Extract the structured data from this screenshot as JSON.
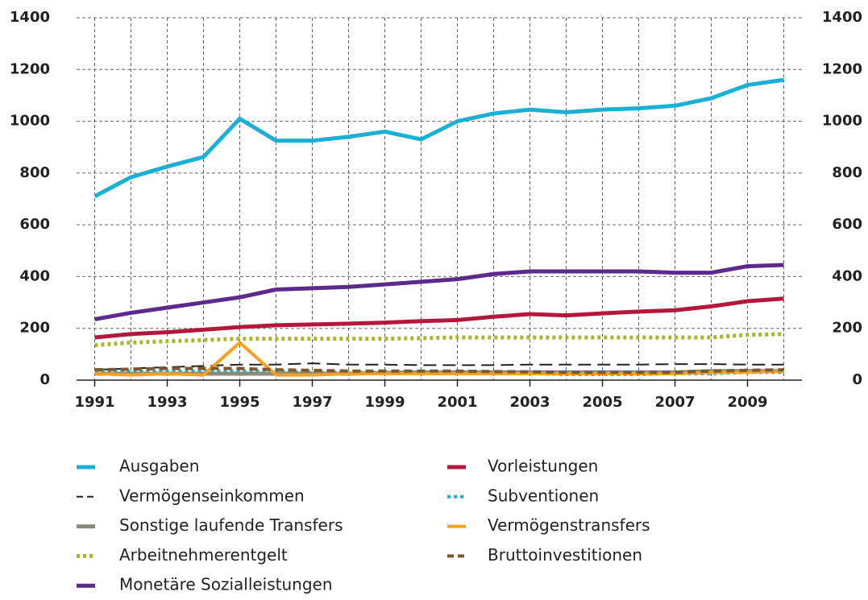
{
  "chart_data": {
    "type": "line",
    "x": [
      1991,
      1992,
      1993,
      1994,
      1995,
      1996,
      1997,
      1998,
      1999,
      2000,
      2001,
      2002,
      2003,
      2004,
      2005,
      2006,
      2007,
      2008,
      2009,
      2010
    ],
    "xlim": [
      1990.5,
      2010.5
    ],
    "xticks": [
      1991,
      1993,
      1995,
      1997,
      1999,
      2001,
      2003,
      2005,
      2007,
      2009
    ],
    "ylim": [
      0,
      1400
    ],
    "yticks": [
      0,
      200,
      400,
      600,
      800,
      1000,
      1200,
      1400
    ],
    "y2lim": [
      0,
      1400
    ],
    "y2ticks": [
      0,
      200,
      400,
      600,
      800,
      1000,
      1200,
      1400
    ],
    "grid": true,
    "series": [
      {
        "name": "Ausgaben",
        "color": "#1ab0d6",
        "dash": "solid",
        "width": 5,
        "values": [
          710,
          784,
          825,
          862,
          1010,
          925,
          925,
          940,
          960,
          930,
          1000,
          1030,
          1045,
          1035,
          1045,
          1050,
          1060,
          1089,
          1140,
          1160
        ]
      },
      {
        "name": "Vorleistungen",
        "color": "#b5173c",
        "dash": "solid",
        "width": 5,
        "values": [
          165,
          178,
          185,
          195,
          205,
          212,
          215,
          218,
          222,
          228,
          232,
          245,
          255,
          250,
          258,
          265,
          270,
          285,
          305,
          315
        ]
      },
      {
        "name": "Vermögenseinkommen",
        "color": "#222222",
        "dash": "longdash",
        "width": 2,
        "values": [
          40,
          45,
          50,
          55,
          60,
          60,
          65,
          60,
          60,
          58,
          58,
          58,
          60,
          60,
          60,
          60,
          62,
          62,
          60,
          60
        ]
      },
      {
        "name": "Subventionen",
        "color": "#1ab0d6",
        "dash": "dotted",
        "width": 4,
        "values": [
          35,
          35,
          35,
          35,
          35,
          35,
          30,
          30,
          30,
          30,
          28,
          28,
          25,
          22,
          22,
          22,
          25,
          25,
          30,
          30
        ]
      },
      {
        "name": "Sonstige laufende Transfers",
        "color": "#8a8a7a",
        "dash": "solid",
        "width": 5,
        "values": [
          25,
          25,
          25,
          25,
          25,
          25,
          25,
          25,
          28,
          30,
          30,
          30,
          30,
          30,
          30,
          30,
          30,
          35,
          35,
          35
        ]
      },
      {
        "name": "Vermögenstransfers",
        "color": "#f5a01e",
        "dash": "solid",
        "width": 4,
        "values": [
          25,
          20,
          25,
          20,
          145,
          20,
          20,
          25,
          25,
          25,
          25,
          25,
          25,
          25,
          25,
          25,
          25,
          30,
          30,
          35
        ]
      },
      {
        "name": "Arbeitnehmerentgelt",
        "color": "#a8b82a",
        "dash": "dotted",
        "width": 5,
        "values": [
          135,
          145,
          150,
          155,
          160,
          160,
          160,
          160,
          160,
          162,
          165,
          165,
          165,
          165,
          165,
          165,
          165,
          165,
          175,
          178
        ]
      },
      {
        "name": "Bruttoinvestitionen",
        "color": "#7a5a30",
        "dash": "dashed",
        "width": 4,
        "values": [
          40,
          42,
          45,
          45,
          45,
          40,
          38,
          35,
          35,
          35,
          35,
          33,
          32,
          30,
          30,
          30,
          30,
          35,
          38,
          40
        ]
      },
      {
        "name": "Monetäre Sozialleistungen",
        "color": "#5b2a8c",
        "dash": "solid",
        "width": 5,
        "values": [
          235,
          260,
          280,
          300,
          320,
          350,
          355,
          360,
          370,
          380,
          390,
          410,
          420,
          420,
          420,
          420,
          415,
          415,
          440,
          445
        ]
      }
    ]
  }
}
